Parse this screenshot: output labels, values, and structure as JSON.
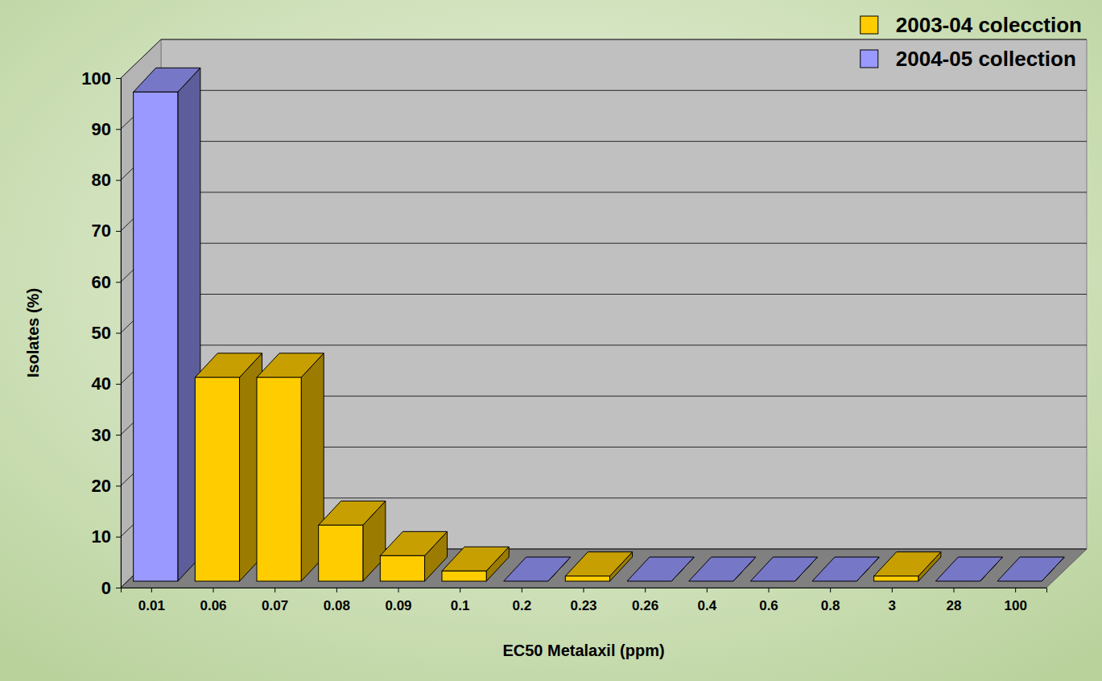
{
  "chart_data": {
    "type": "bar",
    "x_label": "EC50 Metalaxil (ppm)",
    "y_label": "Isolates (%)",
    "categories": [
      "0.01",
      "0.06",
      "0.07",
      "0.08",
      "0.09",
      "0.1",
      "0.2",
      "0.23",
      "0.26",
      "0.4",
      "0.6",
      "0.8",
      "3",
      "28",
      "100"
    ],
    "series": [
      {
        "name": "2003-04 colecction",
        "color": "#ffcc00",
        "values": [
          null,
          40,
          40,
          11,
          5,
          2,
          null,
          1,
          null,
          null,
          null,
          null,
          1,
          null,
          null
        ]
      },
      {
        "name": "2004-05 collection",
        "color": "#9999ff",
        "values": [
          96,
          null,
          null,
          null,
          null,
          null,
          0,
          null,
          0,
          0,
          0,
          0,
          null,
          0,
          0
        ]
      }
    ],
    "ylim": [
      0,
      100
    ],
    "yticks": [
      0,
      10,
      20,
      30,
      40,
      50,
      60,
      70,
      80,
      90,
      100
    ],
    "grid": true,
    "legend": "top-right"
  }
}
